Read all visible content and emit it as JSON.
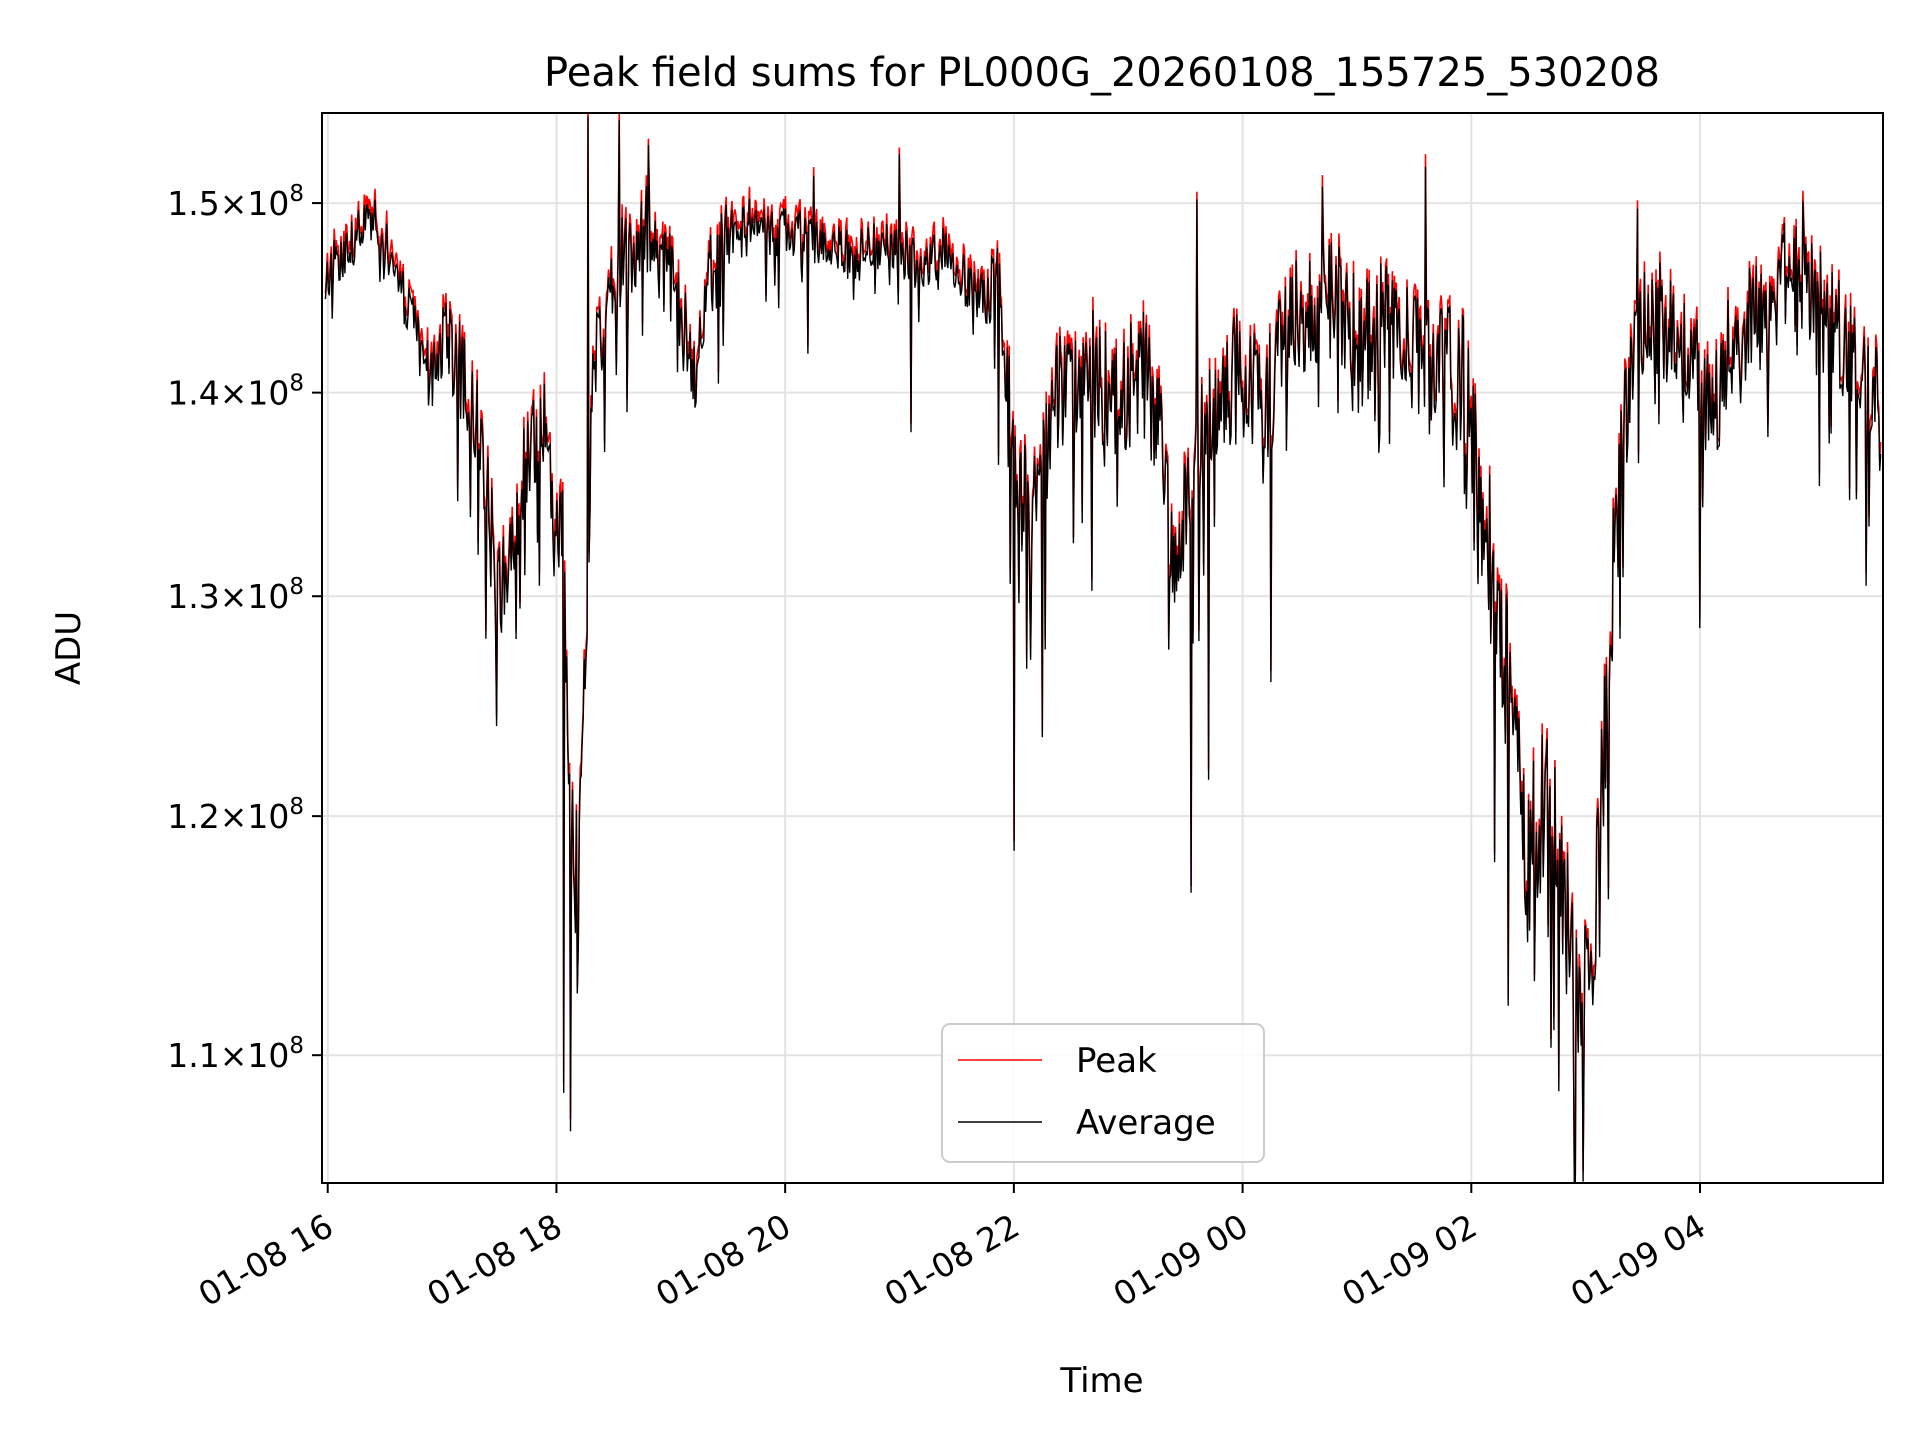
{
  "chart_data": {
    "type": "line",
    "title": "Peak field sums for PL000G_20260108_155725_530208",
    "xlabel": "Time",
    "ylabel": "ADU",
    "yscale": "log",
    "grid": true,
    "legend_position": "bottom-center",
    "x_range_hours": [
      -0.05,
      13.6
    ],
    "ylim": [
      105000000,
      155000000
    ],
    "x_ticks": [
      {
        "hours": 0,
        "label": "01-08 16"
      },
      {
        "hours": 2,
        "label": "01-08 18"
      },
      {
        "hours": 4,
        "label": "01-08 20"
      },
      {
        "hours": 6,
        "label": "01-08 22"
      },
      {
        "hours": 8,
        "label": "01-09 00"
      },
      {
        "hours": 10,
        "label": "01-09 02"
      },
      {
        "hours": 12,
        "label": "01-09 04"
      }
    ],
    "y_ticks": [
      {
        "value": 110000000,
        "mantissa": "1.1",
        "base": "10",
        "exponent": "8"
      },
      {
        "value": 120000000,
        "mantissa": "1.2",
        "base": "10",
        "exponent": "8"
      },
      {
        "value": 130000000,
        "mantissa": "1.3",
        "base": "10",
        "exponent": "8"
      },
      {
        "value": 140000000,
        "mantissa": "1.4",
        "base": "10",
        "exponent": "8"
      },
      {
        "value": 150000000,
        "mantissa": "1.5",
        "base": "10",
        "exponent": "8"
      }
    ],
    "series": [
      {
        "name": "Peak",
        "color": "#ff0000",
        "peak_offset_fraction": 0.0035
      },
      {
        "name": "Average",
        "color": "#000000"
      }
    ],
    "anchors_hours_value": [
      [
        -0.02,
        146000000
      ],
      [
        0.2,
        148000000
      ],
      [
        0.45,
        149000000
      ],
      [
        0.6,
        146000000
      ],
      [
        0.75,
        143500000
      ],
      [
        0.9,
        141000000
      ],
      [
        1.05,
        142500000
      ],
      [
        1.25,
        140000000
      ],
      [
        1.35,
        137000000
      ],
      [
        1.5,
        130000000
      ],
      [
        1.6,
        132000000
      ],
      [
        1.75,
        137000000
      ],
      [
        1.9,
        139000000
      ],
      [
        1.98,
        133000000
      ],
      [
        2.05,
        134000000
      ],
      [
        2.12,
        120000000
      ],
      [
        2.18,
        118000000
      ],
      [
        2.25,
        126000000
      ],
      [
        2.32,
        141000000
      ],
      [
        2.45,
        145000000
      ],
      [
        2.6,
        147000000
      ],
      [
        2.8,
        148500000
      ],
      [
        3.0,
        146000000
      ],
      [
        3.2,
        141000000
      ],
      [
        3.35,
        146000000
      ],
      [
        3.6,
        149000000
      ],
      [
        3.9,
        148500000
      ],
      [
        4.3,
        148000000
      ],
      [
        4.6,
        147000000
      ],
      [
        4.9,
        148000000
      ],
      [
        5.2,
        146500000
      ],
      [
        5.4,
        147500000
      ],
      [
        5.6,
        145500000
      ],
      [
        5.9,
        144500000
      ],
      [
        6.0,
        136000000
      ],
      [
        6.2,
        134000000
      ],
      [
        6.4,
        140000000
      ],
      [
        6.7,
        141000000
      ],
      [
        6.9,
        139000000
      ],
      [
        7.1,
        141500000
      ],
      [
        7.25,
        139000000
      ],
      [
        7.4,
        131000000
      ],
      [
        7.6,
        137000000
      ],
      [
        7.8,
        140000000
      ],
      [
        8.0,
        141000000
      ],
      [
        8.2,
        139000000
      ],
      [
        8.4,
        144000000
      ],
      [
        8.7,
        145000000
      ],
      [
        9.0,
        143500000
      ],
      [
        9.3,
        144000000
      ],
      [
        9.6,
        141000000
      ],
      [
        9.9,
        141500000
      ],
      [
        10.05,
        135000000
      ],
      [
        10.2,
        131000000
      ],
      [
        10.4,
        123000000
      ],
      [
        10.5,
        118000000
      ],
      [
        10.65,
        121000000
      ],
      [
        10.8,
        117000000
      ],
      [
        10.92,
        113000000
      ],
      [
        11.02,
        112000000
      ],
      [
        11.15,
        121000000
      ],
      [
        11.3,
        136000000
      ],
      [
        11.5,
        144000000
      ],
      [
        11.8,
        143500000
      ],
      [
        12.1,
        139000000
      ],
      [
        12.3,
        143000000
      ],
      [
        12.6,
        145500000
      ],
      [
        12.9,
        146000000
      ],
      [
        13.2,
        143000000
      ],
      [
        13.4,
        140500000
      ],
      [
        13.58,
        139000000
      ]
    ],
    "dips_hours_value": [
      [
        1.25,
        133800000
      ],
      [
        1.48,
        124000000
      ],
      [
        1.72,
        131000000
      ],
      [
        1.85,
        130500000
      ],
      [
        2.06,
        108500000
      ],
      [
        2.12,
        107000000
      ],
      [
        2.18,
        112500000
      ],
      [
        2.27,
        128000000
      ],
      [
        2.42,
        137000000
      ],
      [
        2.62,
        139000000
      ],
      [
        3.22,
        139500000
      ],
      [
        4.2,
        142000000
      ],
      [
        5.1,
        138000000
      ],
      [
        6.0,
        118500000
      ],
      [
        6.25,
        123500000
      ],
      [
        6.6,
        133500000
      ],
      [
        7.35,
        127500000
      ],
      [
        7.55,
        116700000
      ],
      [
        7.7,
        121600000
      ],
      [
        8.25,
        126000000
      ],
      [
        10.2,
        118000000
      ],
      [
        10.32,
        112000000
      ],
      [
        10.55,
        113000000
      ],
      [
        10.72,
        111000000
      ],
      [
        10.9,
        104800000
      ],
      [
        10.98,
        103800000
      ],
      [
        11.12,
        114000000
      ],
      [
        11.3,
        128000000
      ],
      [
        12.0,
        128500000
      ],
      [
        13.45,
        130500000
      ]
    ],
    "spikes_hours_value": [
      [
        2.28,
        154800000
      ],
      [
        2.55,
        154600000
      ],
      [
        2.8,
        153200000
      ],
      [
        4.25,
        151500000
      ],
      [
        5.0,
        152700000
      ],
      [
        7.6,
        150200000
      ],
      [
        8.7,
        150900000
      ],
      [
        9.6,
        152000000
      ],
      [
        11.45,
        149700000
      ],
      [
        12.9,
        150100000
      ]
    ]
  }
}
